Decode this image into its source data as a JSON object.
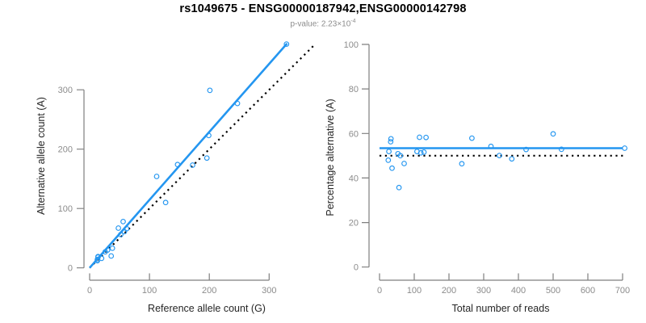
{
  "header": {
    "title": "rs1049675 - ENSG00000187942,ENSG00000142798",
    "p_value_prefix": "p-value: ",
    "p_value_mantissa": "2.23",
    "p_value_times_base": "×10",
    "p_value_exponent": "-4"
  },
  "colors": {
    "accent_blue": "#2496f0",
    "dotted_black": "#000000",
    "axis_gray": "#7f7f7f",
    "tick_label_gray": "#8c8c8c",
    "axis_title_dark": "#262626",
    "background": "#ffffff"
  },
  "chart_data": [
    {
      "type": "scatter",
      "title": "",
      "xlabel": "Reference allele count (G)",
      "ylabel": "Alternative allele count (A)",
      "xticks": [
        0,
        100,
        200,
        300
      ],
      "yticks": [
        0,
        100,
        200,
        300
      ],
      "xlim": [
        0,
        377
      ],
      "ylim": [
        0,
        380
      ],
      "grid": false,
      "legend": "none",
      "points": [
        [
          13,
          12
        ],
        [
          13,
          14
        ],
        [
          14,
          18
        ],
        [
          14,
          19
        ],
        [
          20,
          16
        ],
        [
          26,
          27
        ],
        [
          30,
          30
        ],
        [
          38,
          33
        ],
        [
          36,
          20
        ],
        [
          52,
          56
        ],
        [
          48,
          67
        ],
        [
          58,
          61
        ],
        [
          62,
          66
        ],
        [
          56,
          78
        ],
        [
          127,
          110
        ],
        [
          112,
          154
        ],
        [
          147,
          174
        ],
        [
          172,
          173
        ],
        [
          196,
          185
        ],
        [
          199,
          223
        ],
        [
          201,
          299
        ],
        [
          247,
          277
        ],
        [
          329,
          377
        ]
      ],
      "lines": [
        {
          "role": "identity-line",
          "style": "dotted",
          "color_key": "dotted_black",
          "x1": 0,
          "y1": 0,
          "x2": 375,
          "y2": 375,
          "width": 2.2
        },
        {
          "role": "fit-line",
          "style": "solid",
          "color_key": "accent_blue",
          "x1": 0,
          "y1": 0,
          "x2": 330,
          "y2": 378,
          "width": 2.6
        }
      ]
    },
    {
      "type": "scatter",
      "title": "",
      "xlabel": "Total number of reads",
      "ylabel": "Percentage alternative (A)",
      "xticks": [
        0,
        100,
        200,
        300,
        400,
        500,
        600,
        700
      ],
      "yticks": [
        0,
        20,
        40,
        60,
        80,
        100
      ],
      "xlim": [
        0,
        703
      ],
      "ylim": [
        0,
        100
      ],
      "grid": false,
      "legend": "none",
      "points": [
        [
          25,
          48.0
        ],
        [
          27,
          51.9
        ],
        [
          32,
          56.3
        ],
        [
          33,
          57.6
        ],
        [
          36,
          44.4
        ],
        [
          53,
          50.9
        ],
        [
          60,
          50.0
        ],
        [
          71,
          46.5
        ],
        [
          56,
          35.7
        ],
        [
          108,
          51.9
        ],
        [
          115,
          58.3
        ],
        [
          119,
          51.3
        ],
        [
          128,
          51.6
        ],
        [
          134,
          58.2
        ],
        [
          237,
          46.4
        ],
        [
          266,
          57.9
        ],
        [
          321,
          54.2
        ],
        [
          345,
          50.1
        ],
        [
          381,
          48.6
        ],
        [
          422,
          52.8
        ],
        [
          500,
          59.8
        ],
        [
          524,
          52.9
        ],
        [
          706,
          53.4
        ]
      ],
      "lines": [
        {
          "role": "null-line",
          "style": "dotted",
          "color_key": "dotted_black",
          "x1": 0,
          "y1": 50,
          "x2": 703,
          "y2": 50,
          "width": 2.2
        },
        {
          "role": "fit-line",
          "style": "solid",
          "color_key": "accent_blue",
          "x1": 0,
          "y1": 53.4,
          "x2": 700,
          "y2": 53.4,
          "width": 2.6
        }
      ]
    }
  ]
}
